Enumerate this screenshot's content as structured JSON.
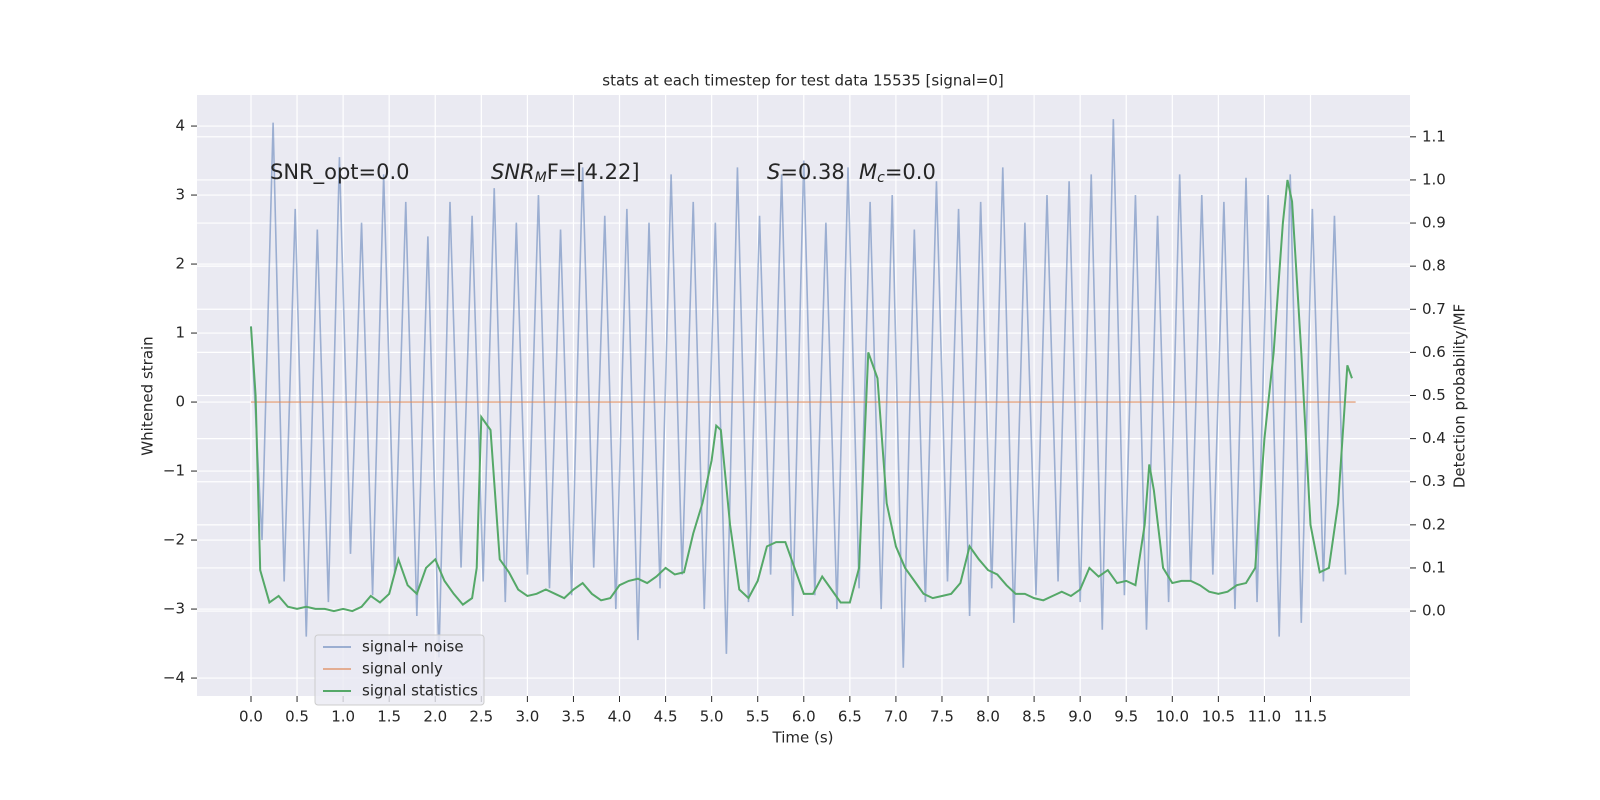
{
  "chart_data": {
    "type": "line",
    "title": "stats at each timestep for test data 15535 [signal=0]",
    "x_label": "Time (s)",
    "y_label": "Whitened strain",
    "y2_label": "Detection probability/MF",
    "annotations": [
      {
        "text": "SNR_opt=0.0"
      },
      {
        "base": "SNR",
        "sub": "M",
        "rest": "F=[4.22]"
      },
      {
        "italic": "S",
        "rest": "=0.38"
      },
      {
        "base": "M",
        "sub": "c",
        "rest": "=0.0"
      }
    ],
    "grid": true,
    "legend": "lower left",
    "xlim": [
      -0.586,
      12.58
    ],
    "ylim": [
      -4.26,
      4.45
    ],
    "y2lim": [
      -0.197,
      1.197
    ],
    "xticks": [
      {
        "value": 0,
        "label": "0.0"
      },
      0.5,
      {
        "value": 1,
        "label": "1.0"
      },
      1.5,
      {
        "value": 2,
        "label": "2.0"
      },
      2.5,
      {
        "value": 3,
        "label": "3.0"
      },
      3.5,
      {
        "value": 4,
        "label": "4.0"
      },
      4.5,
      {
        "value": 5,
        "label": "5.0"
      },
      5.5,
      {
        "value": 6,
        "label": "6.0"
      },
      6.5,
      {
        "value": 7,
        "label": "7.0"
      },
      7.5,
      {
        "value": 8,
        "label": "8.0"
      },
      8.5,
      {
        "value": 9,
        "label": "9.0"
      },
      9.5,
      {
        "value": 10,
        "label": "10.0"
      },
      10.5,
      {
        "value": 11,
        "label": "11.0"
      },
      11.5
    ],
    "yticks": [
      {
        "value": -4,
        "label": "−4"
      },
      {
        "value": -3,
        "label": "−3"
      },
      {
        "value": -2,
        "label": "−2"
      },
      {
        "value": -1,
        "label": "−1"
      },
      0,
      1,
      2,
      3,
      4
    ],
    "y2ticks": [
      {
        "value": 0,
        "label": "0.0"
      },
      0.1,
      0.2,
      0.3,
      0.4,
      0.5,
      0.6,
      0.7,
      0.8,
      0.9,
      {
        "value": 1,
        "label": "1.0"
      },
      1.1
    ],
    "series": [
      {
        "name": "signal+ noise",
        "color": "#4c72b0",
        "opacity": 0.5,
        "x": [
          0,
          0.12,
          0.24,
          0.36,
          0.48,
          0.6,
          0.72,
          0.84,
          0.96,
          1.08,
          1.2,
          1.32,
          1.44,
          1.56,
          1.68,
          1.8,
          1.92,
          2.04,
          2.16,
          2.28,
          2.4,
          2.52,
          2.64,
          2.76,
          2.88,
          3.0,
          3.12,
          3.24,
          3.36,
          3.48,
          3.6,
          3.72,
          3.84,
          3.96,
          4.08,
          4.2,
          4.32,
          4.44,
          4.56,
          4.68,
          4.8,
          4.92,
          5.04,
          5.16,
          5.28,
          5.4,
          5.52,
          5.64,
          5.76,
          5.88,
          6.0,
          6.12,
          6.24,
          6.36,
          6.48,
          6.6,
          6.72,
          6.84,
          6.96,
          7.08,
          7.2,
          7.32,
          7.44,
          7.56,
          7.68,
          7.8,
          7.92,
          8.04,
          8.16,
          8.28,
          8.4,
          8.52,
          8.64,
          8.76,
          8.88,
          9.0,
          9.12,
          9.24,
          9.36,
          9.48,
          9.6,
          9.72,
          9.84,
          9.96,
          10.08,
          10.2,
          10.32,
          10.44,
          10.56,
          10.68,
          10.8,
          10.92,
          11.04,
          11.16,
          11.28,
          11.4,
          11.52,
          11.64,
          11.76,
          11.88
        ],
        "values": [
          1.1,
          -2.0,
          4.05,
          -2.6,
          2.8,
          -3.4,
          2.5,
          -2.9,
          3.55,
          -2.2,
          2.6,
          -2.8,
          3.3,
          -2.5,
          2.9,
          -3.1,
          2.4,
          -3.7,
          2.9,
          -2.4,
          2.7,
          -2.6,
          3.1,
          -2.9,
          2.6,
          -2.5,
          3.0,
          -2.7,
          2.5,
          -2.8,
          3.4,
          -2.4,
          2.7,
          -3.0,
          2.8,
          -3.45,
          2.6,
          -2.7,
          3.3,
          -2.5,
          2.9,
          -3.0,
          2.6,
          -3.65,
          3.4,
          -2.9,
          2.7,
          -2.5,
          3.3,
          -3.1,
          3.5,
          -2.8,
          2.6,
          -3.0,
          3.4,
          -2.7,
          2.9,
          -3.0,
          3.0,
          -3.85,
          2.5,
          -2.9,
          3.2,
          -2.6,
          2.8,
          -3.1,
          2.9,
          -2.7,
          3.4,
          -3.2,
          2.6,
          -2.8,
          3.0,
          -2.6,
          3.2,
          -2.9,
          3.3,
          -3.3,
          4.1,
          -2.8,
          3.0,
          -3.3,
          2.7,
          -2.9,
          3.3,
          -2.6,
          3.0,
          -2.5,
          2.9,
          -3.0,
          3.25,
          -2.9,
          3.0,
          -3.4,
          3.3,
          -3.2,
          2.8,
          -2.6,
          2.7,
          -2.5
        ]
      },
      {
        "name": "signal only",
        "color": "#dd8452",
        "opacity": 0.6,
        "x": [
          0,
          11.99
        ],
        "values": [
          0,
          0
        ]
      },
      {
        "name": "signal statistics",
        "color": "#55a868",
        "opacity": 1,
        "axis": "y2",
        "x": [
          0,
          0.05,
          0.1,
          0.2,
          0.3,
          0.4,
          0.5,
          0.6,
          0.7,
          0.8,
          0.9,
          1.0,
          1.1,
          1.2,
          1.3,
          1.4,
          1.5,
          1.6,
          1.7,
          1.8,
          1.9,
          2.0,
          2.1,
          2.2,
          2.3,
          2.4,
          2.45,
          2.5,
          2.6,
          2.7,
          2.8,
          2.9,
          3.0,
          3.1,
          3.2,
          3.3,
          3.4,
          3.5,
          3.6,
          3.7,
          3.8,
          3.9,
          4.0,
          4.1,
          4.2,
          4.3,
          4.4,
          4.5,
          4.6,
          4.7,
          4.8,
          4.9,
          5.0,
          5.05,
          5.1,
          5.2,
          5.3,
          5.4,
          5.5,
          5.6,
          5.7,
          5.8,
          5.9,
          6.0,
          6.1,
          6.2,
          6.3,
          6.4,
          6.5,
          6.6,
          6.7,
          6.8,
          6.9,
          7.0,
          7.1,
          7.2,
          7.3,
          7.4,
          7.5,
          7.6,
          7.7,
          7.8,
          7.9,
          8.0,
          8.1,
          8.2,
          8.3,
          8.4,
          8.5,
          8.6,
          8.7,
          8.8,
          8.9,
          9.0,
          9.1,
          9.2,
          9.3,
          9.4,
          9.5,
          9.6,
          9.7,
          9.75,
          9.8,
          9.9,
          10.0,
          10.1,
          10.2,
          10.3,
          10.4,
          10.5,
          10.6,
          10.7,
          10.8,
          10.9,
          11.0,
          11.1,
          11.2,
          11.25,
          11.3,
          11.4,
          11.5,
          11.6,
          11.7,
          11.8,
          11.9,
          11.95
        ],
        "values": [
          0.66,
          0.5,
          0.095,
          0.02,
          0.035,
          0.01,
          0.005,
          0.01,
          0.005,
          0.005,
          0.0,
          0.005,
          0.0,
          0.01,
          0.035,
          0.02,
          0.04,
          0.12,
          0.06,
          0.04,
          0.1,
          0.12,
          0.07,
          0.04,
          0.015,
          0.03,
          0.1,
          0.45,
          0.42,
          0.12,
          0.09,
          0.05,
          0.035,
          0.04,
          0.05,
          0.04,
          0.03,
          0.05,
          0.065,
          0.04,
          0.025,
          0.03,
          0.06,
          0.07,
          0.075,
          0.065,
          0.08,
          0.1,
          0.085,
          0.09,
          0.18,
          0.25,
          0.35,
          0.43,
          0.42,
          0.2,
          0.05,
          0.03,
          0.07,
          0.15,
          0.16,
          0.16,
          0.1,
          0.04,
          0.04,
          0.08,
          0.05,
          0.02,
          0.02,
          0.1,
          0.6,
          0.54,
          0.25,
          0.15,
          0.1,
          0.07,
          0.04,
          0.03,
          0.035,
          0.04,
          0.065,
          0.15,
          0.12,
          0.095,
          0.085,
          0.06,
          0.04,
          0.04,
          0.03,
          0.025,
          0.035,
          0.045,
          0.035,
          0.05,
          0.1,
          0.08,
          0.095,
          0.065,
          0.07,
          0.06,
          0.2,
          0.34,
          0.28,
          0.1,
          0.065,
          0.07,
          0.07,
          0.06,
          0.045,
          0.04,
          0.045,
          0.06,
          0.065,
          0.1,
          0.4,
          0.6,
          0.9,
          1.0,
          0.95,
          0.6,
          0.2,
          0.09,
          0.1,
          0.25,
          0.57,
          0.54
        ]
      }
    ]
  }
}
